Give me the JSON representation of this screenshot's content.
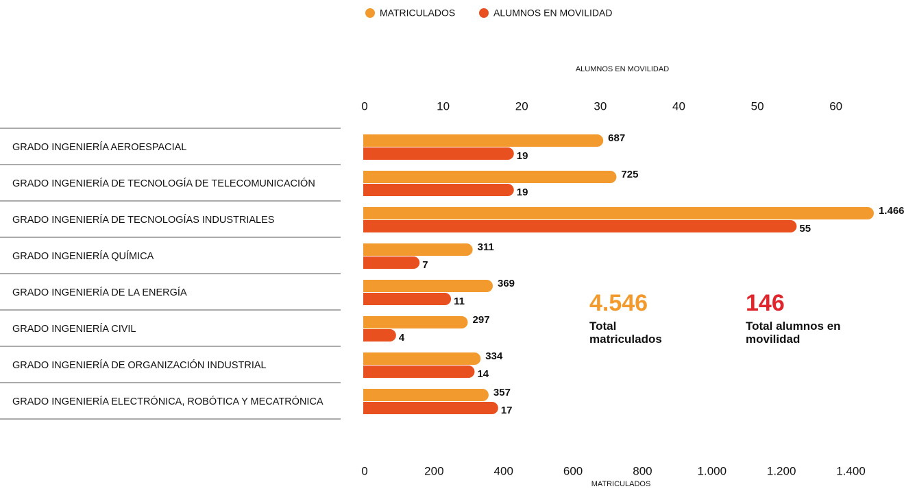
{
  "chart_data": {
    "type": "hbar",
    "categories": [
      "GRADO INGENIERÍA AEROESPACIAL",
      "GRADO INGENIERÍA DE TECNOLOGÍA DE TELECOMUNICACIÓN",
      "GRADO INGENIERÍA DE TECNOLOGÍAS INDUSTRIALES",
      "GRADO INGENIERÍA QUÍMICA",
      "GRADO INGENIERÍA DE LA ENERGÍA",
      "GRADO INGENIERÍA CIVIL",
      "GRADO INGENIERÍA DE ORGANIZACIÓN INDUSTRIAL",
      "GRADO INGENIERÍA ELECTRÓNICA, ROBÓTICA Y MECATRÓNICA"
    ],
    "series": [
      {
        "name": "MATRICULADOS",
        "color": "#f39a2e",
        "axis": "x",
        "values": [
          687,
          725,
          1466,
          311,
          369,
          297,
          334,
          357
        ],
        "value_labels": [
          "687",
          "725",
          "1.466",
          "311",
          "369",
          "297",
          "334",
          "357"
        ]
      },
      {
        "name": "ALUMNOS EN MOVILIDAD",
        "color": "#e8501f",
        "axis": "x2",
        "values": [
          19,
          19,
          55,
          7,
          11,
          4,
          14,
          17
        ]
      }
    ],
    "x_label": "MATRICULADOS",
    "xlim": [
      0,
      1470
    ],
    "xticks": [
      0,
      200,
      400,
      600,
      800,
      {
        "value": 1000,
        "label": "1.000"
      },
      {
        "value": 1200,
        "label": "1.200"
      },
      {
        "value": 1400,
        "label": "1.400"
      }
    ],
    "x2_label": "ALUMNOS EN MOVILIDAD",
    "x2lim": [
      0,
      65
    ],
    "x2ticks": [
      0,
      10,
      20,
      30,
      40,
      50,
      60
    ],
    "totals": [
      {
        "value": "4.546",
        "label": "Total matriculados",
        "color": "#f39a2e"
      },
      {
        "value": "146",
        "label": "Total alumnos en movilidad",
        "color": "#e0262d"
      }
    ]
  }
}
